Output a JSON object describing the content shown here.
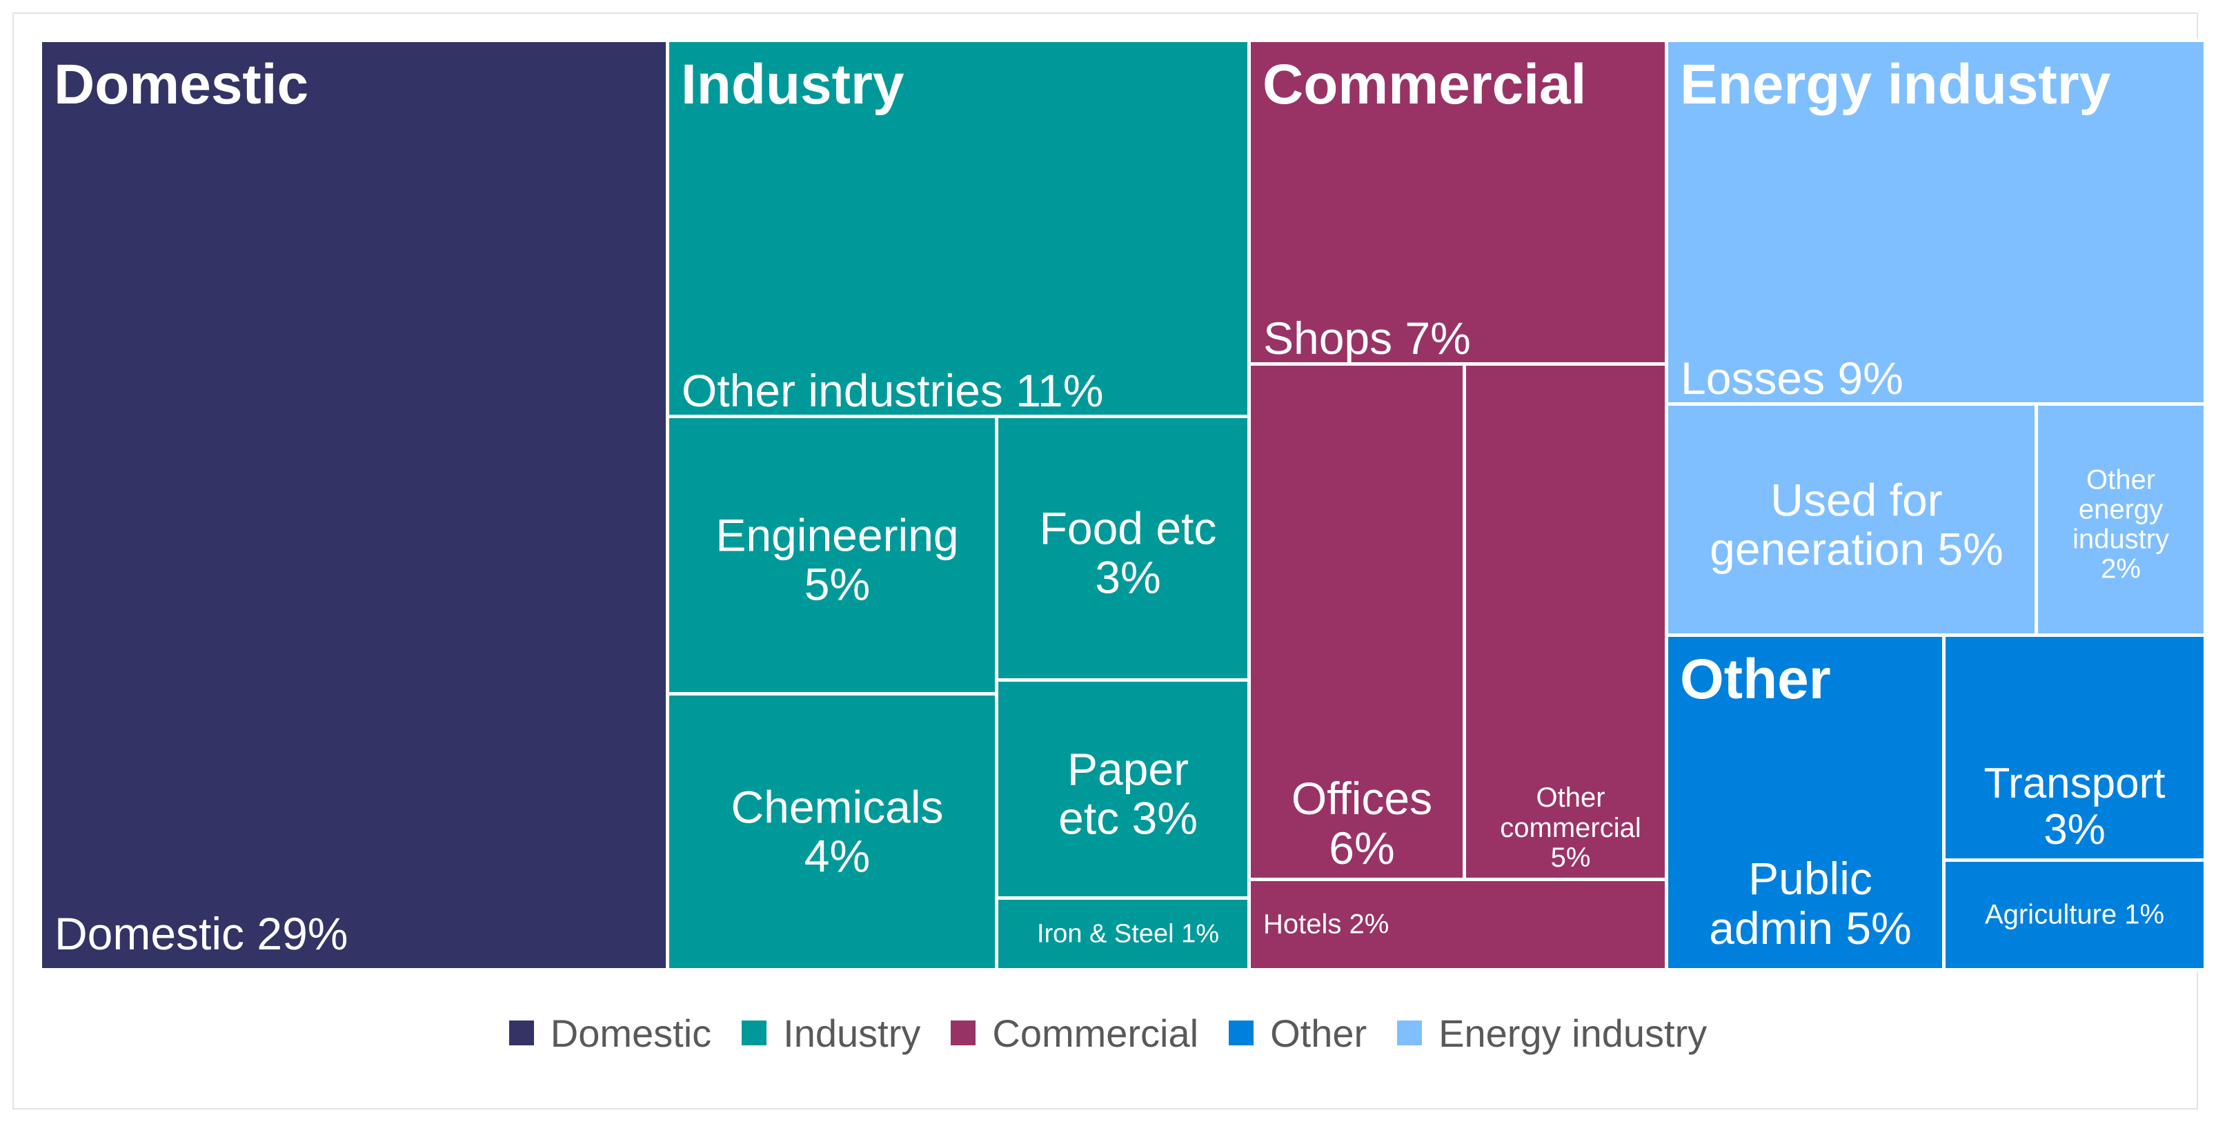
{
  "chart_data": {
    "type": "treemap",
    "groups": [
      {
        "name": "Domestic",
        "color": "#333366",
        "items": [
          {
            "label": "Domestic 29%",
            "category": "Domestic",
            "value": 29
          }
        ]
      },
      {
        "name": "Industry",
        "color": "#009999",
        "items": [
          {
            "label": "Other industries 11%",
            "category": "Other industries",
            "value": 11
          },
          {
            "label": "Engineering 5%",
            "category": "Engineering",
            "value": 5
          },
          {
            "label": "Chemicals 4%",
            "category": "Chemicals",
            "value": 4
          },
          {
            "label": "Food etc 3%",
            "category": "Food etc",
            "value": 3
          },
          {
            "label": "Paper etc 3%",
            "category": "Paper etc",
            "value": 3
          },
          {
            "label": "Iron & Steel 1%",
            "category": "Iron & Steel",
            "value": 1
          }
        ]
      },
      {
        "name": "Commercial",
        "color": "#993366",
        "items": [
          {
            "label": "Shops 7%",
            "category": "Shops",
            "value": 7
          },
          {
            "label": "Offices 6%",
            "category": "Offices",
            "value": 6
          },
          {
            "label": "Other commercial 5%",
            "category": "Other commercial",
            "value": 5
          },
          {
            "label": "Hotels 2%",
            "category": "Hotels",
            "value": 2
          }
        ]
      },
      {
        "name": "Energy industry",
        "color": "#7FBFFF",
        "items": [
          {
            "label": "Losses 9%",
            "category": "Losses",
            "value": 9
          },
          {
            "label": "Used for generation 5%",
            "category": "Used for generation",
            "value": 5
          },
          {
            "label": "Other energy industry 2%",
            "category": "Other energy industry",
            "value": 2
          }
        ]
      },
      {
        "name": "Other",
        "color": "#0080DD",
        "items": [
          {
            "label": "Public admin 5%",
            "category": "Public admin",
            "value": 5
          },
          {
            "label": "Transport 3%",
            "category": "Transport",
            "value": 3
          },
          {
            "label": "Agriculture 1%",
            "category": "Agriculture",
            "value": 1
          }
        ]
      }
    ],
    "legend": [
      {
        "name": "Domestic",
        "color": "#333366"
      },
      {
        "name": "Industry",
        "color": "#009999"
      },
      {
        "name": "Commercial",
        "color": "#993366"
      },
      {
        "name": "Other",
        "color": "#0080DD"
      },
      {
        "name": "Energy industry",
        "color": "#7FBFFF"
      }
    ],
    "legend_position": "bottom"
  }
}
